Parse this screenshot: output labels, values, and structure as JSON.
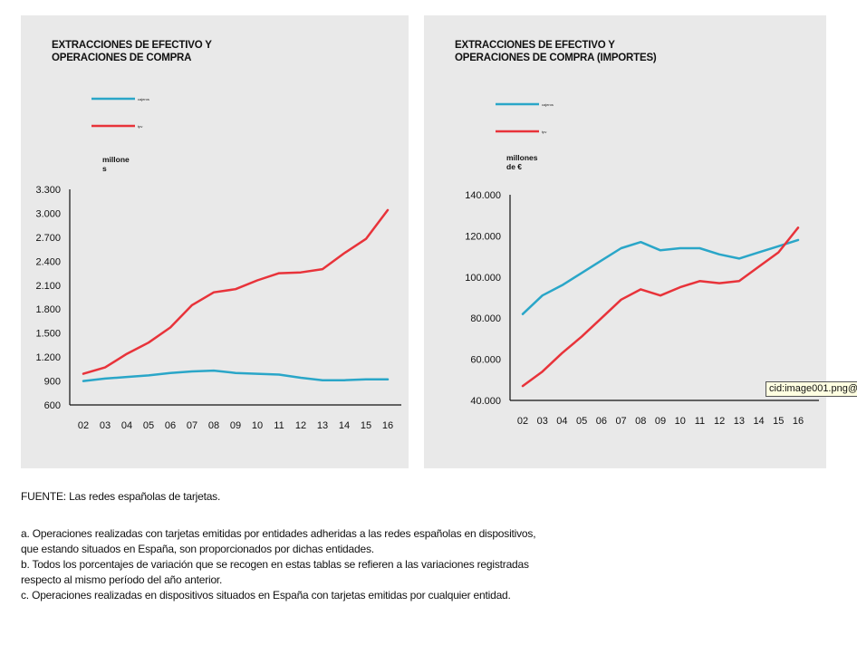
{
  "colors": {
    "panel_bg": "#e9e9e9",
    "axis": "#111111",
    "series_a": "#2aa6c8",
    "series_b": "#e8333a"
  },
  "tooltip_text": "cid:image001.png@",
  "chart_data": [
    {
      "type": "line",
      "title_lines": [
        "EXTRACCIONES DE EFECTIVO Y",
        "OPERACIONES DE COMPRA"
      ],
      "unit_label_lines": [
        "millone",
        "s"
      ],
      "categories": [
        "02",
        "03",
        "04",
        "05",
        "06",
        "07",
        "08",
        "09",
        "10",
        "11",
        "12",
        "13",
        "14",
        "15",
        "16"
      ],
      "y_ticks": [
        "3.300",
        "3.000",
        "2.700",
        "2.400",
        "2.100",
        "1.800",
        "1.500",
        "1.200",
        "900",
        "600"
      ],
      "ylim": [
        600,
        3300
      ],
      "series": [
        {
          "name": "cajeros",
          "legend": "cajeros",
          "color": "#2aa6c8",
          "values": [
            900,
            930,
            950,
            970,
            1000,
            1020,
            1030,
            1000,
            990,
            980,
            940,
            910,
            910,
            920,
            920
          ]
        },
        {
          "name": "tpv",
          "legend": "tpv",
          "color": "#e8333a",
          "values": [
            990,
            1070,
            1240,
            1380,
            1570,
            1850,
            2010,
            2050,
            2160,
            2250,
            2260,
            2300,
            2500,
            2680,
            3040
          ]
        }
      ]
    },
    {
      "type": "line",
      "title_lines": [
        "EXTRACCIONES DE EFECTIVO Y",
        "OPERACIONES DE COMPRA (IMPORTES)"
      ],
      "unit_label_lines": [
        "millones",
        "de €"
      ],
      "categories": [
        "02",
        "03",
        "04",
        "05",
        "06",
        "07",
        "08",
        "09",
        "10",
        "11",
        "12",
        "13",
        "14",
        "15",
        "16"
      ],
      "y_ticks": [
        "140.000",
        "120.000",
        "100.000",
        "80.000",
        "60.000",
        "40.000"
      ],
      "ylim": [
        40000,
        140000
      ],
      "series": [
        {
          "name": "cajeros",
          "legend": "cajeros",
          "color": "#2aa6c8",
          "values": [
            82000,
            91000,
            96000,
            102000,
            108000,
            114000,
            117000,
            113000,
            114000,
            114000,
            111000,
            109000,
            112000,
            115000,
            118000
          ]
        },
        {
          "name": "tpv",
          "legend": "tpv",
          "color": "#e8333a",
          "values": [
            47000,
            54000,
            63000,
            71000,
            80000,
            89000,
            94000,
            91000,
            95000,
            98000,
            97000,
            98000,
            105000,
            112000,
            124000
          ]
        }
      ]
    }
  ],
  "notes": {
    "source": "FUENTE: Las redes españolas de tarjetas.",
    "a_1": "a. Operaciones realizadas con tarjetas emitidas por entidades adheridas a las redes españolas en dispositivos,",
    "a_2": "que estando situados en España, son proporcionados por dichas entidades.",
    "b_1": "b. Todos los porcentajes de variación que se recogen en estas tablas se refieren a las variaciones registradas",
    "b_2": "respecto al mismo período del año anterior.",
    "c": "c. Operaciones realizadas en dispositivos situados en España con tarjetas emitidas por cualquier entidad."
  }
}
